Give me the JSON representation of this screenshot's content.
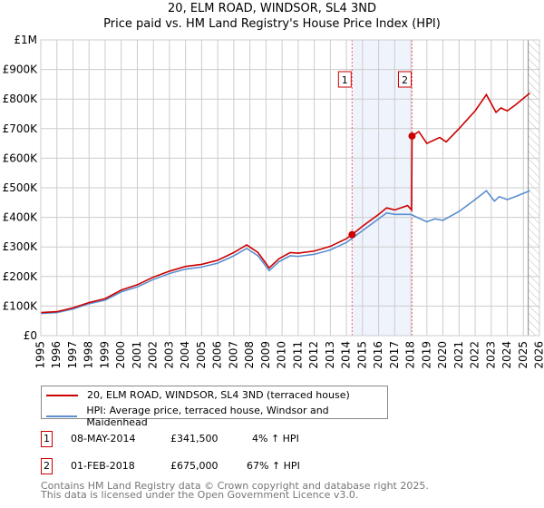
{
  "title": "20, ELM ROAD, WINDSOR, SL4 3ND",
  "subtitle": "Price paid vs. HM Land Registry's House Price Index (HPI)",
  "colors": {
    "property": "#cc0000",
    "hpi": "#5b8fd0",
    "shade": "#eef3fc"
  },
  "chart_data": {
    "type": "line",
    "xlim": [
      1995,
      2026
    ],
    "ylim": [
      0,
      1000000
    ],
    "x_ticks": [
      "1995",
      "1996",
      "1997",
      "1998",
      "1999",
      "2000",
      "2001",
      "2002",
      "2003",
      "2004",
      "2005",
      "2006",
      "2007",
      "2008",
      "2009",
      "2010",
      "2011",
      "2012",
      "2013",
      "2014",
      "2015",
      "2016",
      "2017",
      "2018",
      "2019",
      "2020",
      "2021",
      "2022",
      "2023",
      "2024",
      "2025",
      "2026"
    ],
    "y_ticks": [
      {
        "v": 0,
        "label": "£0"
      },
      {
        "v": 100000,
        "label": "£100K"
      },
      {
        "v": 200000,
        "label": "£200K"
      },
      {
        "v": 300000,
        "label": "£300K"
      },
      {
        "v": 400000,
        "label": "£400K"
      },
      {
        "v": 500000,
        "label": "£500K"
      },
      {
        "v": 600000,
        "label": "£600K"
      },
      {
        "v": 700000,
        "label": "£700K"
      },
      {
        "v": 800000,
        "label": "£800K"
      },
      {
        "v": 900000,
        "label": "£900K"
      },
      {
        "v": 1000000,
        "label": "£1M"
      }
    ],
    "grid": true,
    "shaded_range": [
      2014.35,
      2018.08
    ],
    "forecast_from": 2025.3,
    "series": [
      {
        "name": "20, ELM ROAD, WINDSOR, SL4 3ND (terraced house)",
        "x": [
          1995,
          1996,
          1997,
          1998,
          1999,
          2000,
          2001,
          2002,
          2003,
          2004,
          2005,
          2006,
          2007,
          2007.8,
          2008.5,
          2009.2,
          2009.8,
          2010.5,
          2011,
          2012,
          2013,
          2014,
          2014.35,
          2015,
          2016,
          2016.5,
          2017,
          2017.8,
          2018.05,
          2018.08,
          2018.5,
          2019,
          2019.8,
          2020.2,
          2021,
          2022,
          2022.7,
          2023.3,
          2023.6,
          2024,
          2024.5,
          2025.4
        ],
        "y": [
          78000,
          81000,
          94000,
          112000,
          125000,
          154000,
          172000,
          198000,
          218000,
          234000,
          241000,
          255000,
          281000,
          307000,
          281000,
          229000,
          260000,
          281000,
          279000,
          286000,
          302000,
          328000,
          341500,
          370000,
          410000,
          432000,
          425000,
          440000,
          425000,
          675000,
          690000,
          650000,
          670000,
          655000,
          700000,
          760000,
          815000,
          755000,
          770000,
          760000,
          780000,
          820000
        ]
      },
      {
        "name": "HPI: Average price, terraced house, Windsor and Maidenhead",
        "x": [
          1995,
          1996,
          1997,
          1998,
          1999,
          2000,
          2001,
          2002,
          2003,
          2004,
          2005,
          2006,
          2007,
          2007.8,
          2008.5,
          2009.2,
          2009.8,
          2010.5,
          2011,
          2012,
          2013,
          2014,
          2015,
          2016,
          2016.5,
          2017,
          2018,
          2019,
          2019.5,
          2020,
          2021,
          2022,
          2022.7,
          2023.2,
          2023.5,
          2024,
          2024.5,
          2025.4
        ],
        "y": [
          75000,
          78000,
          90000,
          108000,
          120000,
          148000,
          165000,
          190000,
          210000,
          225000,
          232000,
          245000,
          270000,
          295000,
          270000,
          220000,
          250000,
          270000,
          268000,
          275000,
          290000,
          315000,
          355000,
          395000,
          415000,
          410000,
          410000,
          385000,
          395000,
          390000,
          420000,
          460000,
          490000,
          455000,
          470000,
          460000,
          470000,
          490000
        ]
      }
    ],
    "sales": [
      {
        "label": "1",
        "x": 2014.35,
        "y": 341500
      },
      {
        "label": "2",
        "x": 2018.08,
        "y": 675000
      }
    ]
  },
  "legend": {
    "property": "20, ELM ROAD, WINDSOR, SL4 3ND (terraced house)",
    "hpi": "HPI: Average price, terraced house, Windsor and Maidenhead"
  },
  "transactions": [
    {
      "num": "1",
      "date": "08-MAY-2014",
      "price": "£341,500",
      "hpi": "4% ↑ HPI"
    },
    {
      "num": "2",
      "date": "01-FEB-2018",
      "price": "£675,000",
      "hpi": "67% ↑ HPI"
    }
  ],
  "footer": [
    "Contains HM Land Registry data © Crown copyright and database right 2025.",
    "This data is licensed under the Open Government Licence v3.0."
  ]
}
